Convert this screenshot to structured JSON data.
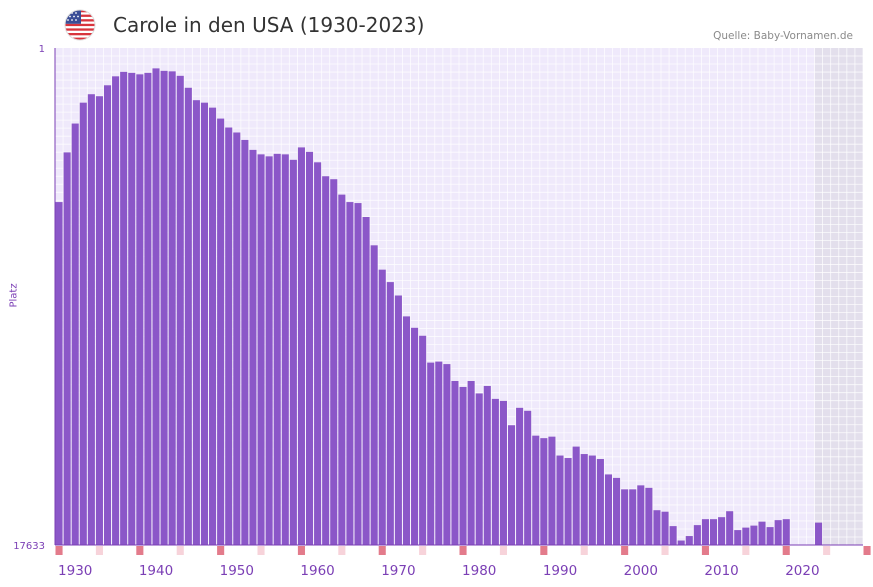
{
  "header": {
    "title": "Carole in den USA (1930-2023)",
    "source": "Quelle: Baby-Vornamen.de",
    "flag_icon": "us-flag-icon"
  },
  "colors": {
    "bar": "#8b57c8",
    "plot_bg": "#efe9fb",
    "grid": "#ffffff",
    "future_bg": "#e3dfec",
    "axis": "#7b3fb5",
    "marker_strong": "#e37b8b",
    "marker_light": "#f7d3da"
  },
  "chart_data": {
    "type": "bar",
    "title": "Carole in den USA (1930-2023)",
    "ylabel": "Platz",
    "xlabel": "",
    "y_tick_labels": [
      "1",
      "17633"
    ],
    "ylim_rank": [
      1,
      17633
    ],
    "x_range_years": [
      1928,
      2028
    ],
    "x_tick_labels": [
      "1930",
      "1940",
      "1950",
      "1960",
      "1970",
      "1980",
      "1990",
      "2000",
      "2010",
      "2020"
    ],
    "x_tick_years": [
      1930,
      1940,
      1950,
      1960,
      1970,
      1980,
      1990,
      2000,
      2010,
      2020
    ],
    "shaded_future_from_year": 2022,
    "bar_height_fraction_note": "values are fraction of bar height relative to full axis (1 = rank 1, 0 = rank 17633)",
    "years": [
      1928,
      1929,
      1930,
      1931,
      1932,
      1933,
      1934,
      1935,
      1936,
      1937,
      1938,
      1939,
      1940,
      1941,
      1942,
      1943,
      1944,
      1945,
      1946,
      1947,
      1948,
      1949,
      1950,
      1951,
      1952,
      1953,
      1954,
      1955,
      1956,
      1957,
      1958,
      1959,
      1960,
      1961,
      1962,
      1963,
      1964,
      1965,
      1966,
      1967,
      1968,
      1969,
      1970,
      1971,
      1972,
      1973,
      1974,
      1975,
      1976,
      1977,
      1978,
      1979,
      1980,
      1981,
      1982,
      1983,
      1984,
      1985,
      1986,
      1987,
      1988,
      1989,
      1990,
      1991,
      1992,
      1993,
      1994,
      1995,
      1996,
      1997,
      1998,
      1999,
      2000,
      2001,
      2002,
      2003,
      2004,
      2005,
      2006,
      2007,
      2008,
      2009,
      2010,
      2011,
      2012,
      2013,
      2014,
      2015,
      2016,
      2017,
      2018,
      2019,
      2020,
      2021,
      2022,
      2023,
      2024,
      2025,
      2026,
      2027
    ],
    "values": [
      0.69,
      0.79,
      0.848,
      0.89,
      0.907,
      0.903,
      0.925,
      0.943,
      0.952,
      0.95,
      0.947,
      0.95,
      0.959,
      0.954,
      0.953,
      0.944,
      0.92,
      0.895,
      0.89,
      0.88,
      0.858,
      0.84,
      0.83,
      0.815,
      0.795,
      0.786,
      0.782,
      0.787,
      0.786,
      0.775,
      0.8,
      0.791,
      0.77,
      0.742,
      0.736,
      0.705,
      0.69,
      0.688,
      0.66,
      0.603,
      0.554,
      0.529,
      0.502,
      0.46,
      0.437,
      0.421,
      0.367,
      0.369,
      0.364,
      0.33,
      0.318,
      0.33,
      0.305,
      0.32,
      0.294,
      0.29,
      0.241,
      0.276,
      0.27,
      0.22,
      0.215,
      0.218,
      0.18,
      0.175,
      0.198,
      0.183,
      0.18,
      0.173,
      0.142,
      0.135,
      0.112,
      0.112,
      0.12,
      0.115,
      0.07,
      0.067,
      0.038,
      0.009,
      0.018,
      0.04,
      0.052,
      0.052,
      0.056,
      0.068,
      0.03,
      0.035,
      0.039,
      0.047,
      0.036,
      0.05,
      0.052,
      0,
      0,
      0,
      0.045,
      0,
      0,
      0,
      0,
      0
    ],
    "markers": [
      {
        "year": 1928,
        "strength": "strong"
      },
      {
        "year": 1933,
        "strength": "light"
      },
      {
        "year": 1938,
        "strength": "strong"
      },
      {
        "year": 1943,
        "strength": "light"
      },
      {
        "year": 1948,
        "strength": "strong"
      },
      {
        "year": 1953,
        "strength": "light"
      },
      {
        "year": 1958,
        "strength": "strong"
      },
      {
        "year": 1963,
        "strength": "light"
      },
      {
        "year": 1968,
        "strength": "strong"
      },
      {
        "year": 1973,
        "strength": "light"
      },
      {
        "year": 1978,
        "strength": "strong"
      },
      {
        "year": 1983,
        "strength": "light"
      },
      {
        "year": 1988,
        "strength": "strong"
      },
      {
        "year": 1993,
        "strength": "light"
      },
      {
        "year": 1998,
        "strength": "strong"
      },
      {
        "year": 2003,
        "strength": "light"
      },
      {
        "year": 2008,
        "strength": "strong"
      },
      {
        "year": 2013,
        "strength": "light"
      },
      {
        "year": 2018,
        "strength": "strong"
      },
      {
        "year": 2023,
        "strength": "light"
      },
      {
        "year": 2028,
        "strength": "strong"
      }
    ]
  }
}
